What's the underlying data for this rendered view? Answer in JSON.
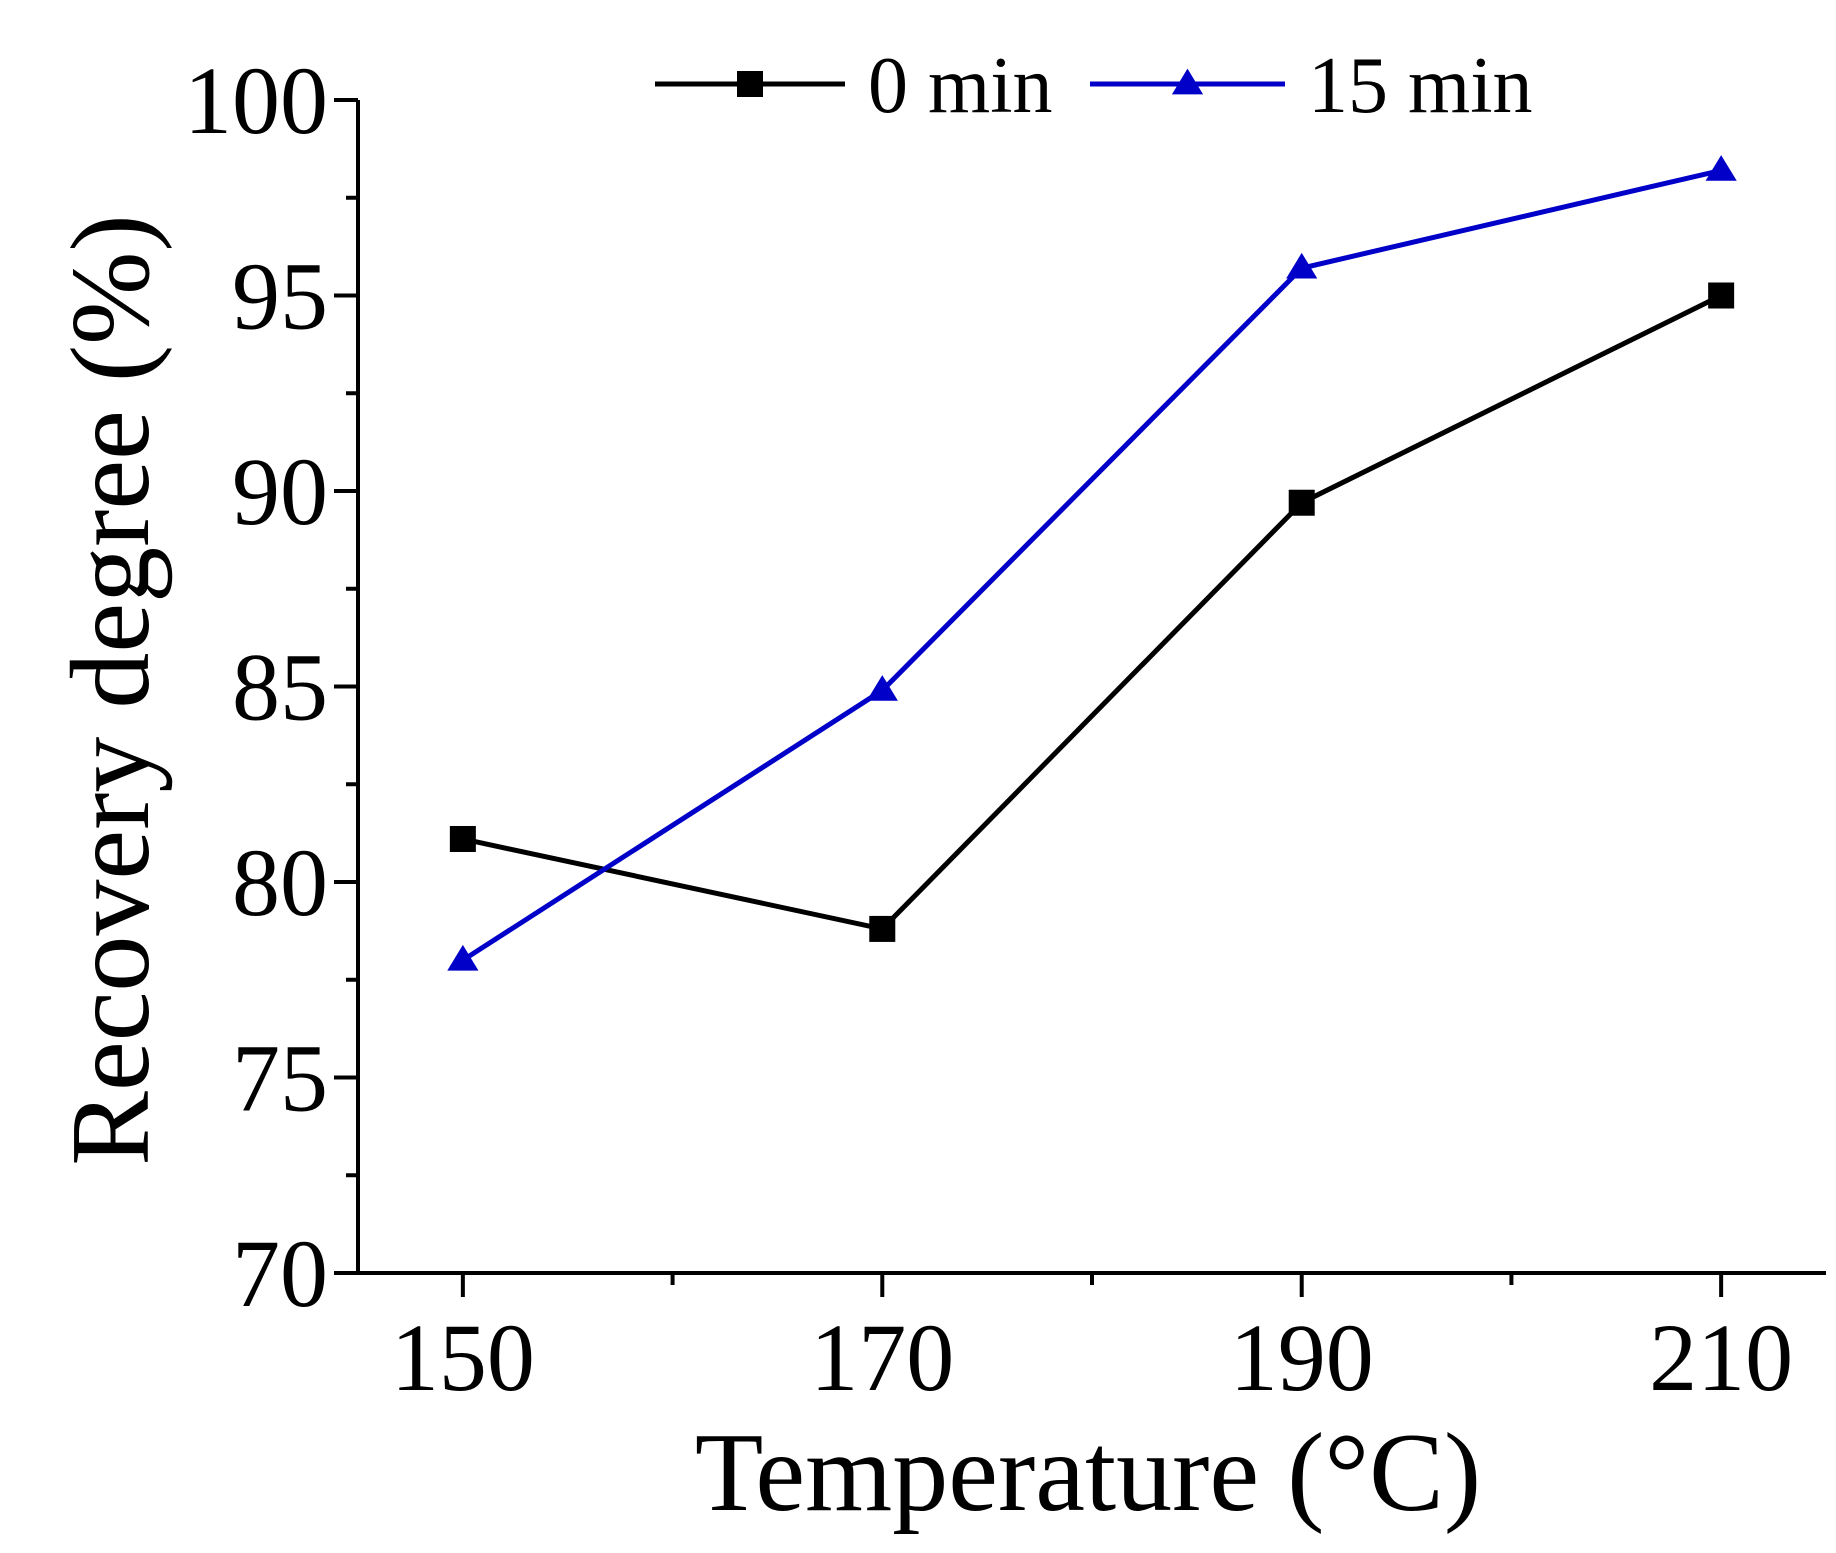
{
  "chart_data": {
    "type": "line",
    "title": "",
    "xlabel": "Temperature (°C)",
    "ylabel": "Recovery degree (%)",
    "x": [
      150,
      170,
      190,
      210
    ],
    "xticks": [
      "150",
      "170",
      "190",
      "210"
    ],
    "xlim": [
      145,
      215
    ],
    "yticks": [
      "70",
      "75",
      "80",
      "85",
      "90",
      "95",
      "100"
    ],
    "ylim": [
      70,
      100
    ],
    "grid": false,
    "legend_position": "top",
    "series": [
      {
        "name": "0 min",
        "color": "#000000",
        "marker": "square",
        "values": [
          81.1,
          78.8,
          89.7,
          95.0
        ]
      },
      {
        "name": "15 min",
        "color": "#0000c8",
        "marker": "triangle",
        "values": [
          78.0,
          84.9,
          95.7,
          98.2
        ]
      }
    ]
  }
}
